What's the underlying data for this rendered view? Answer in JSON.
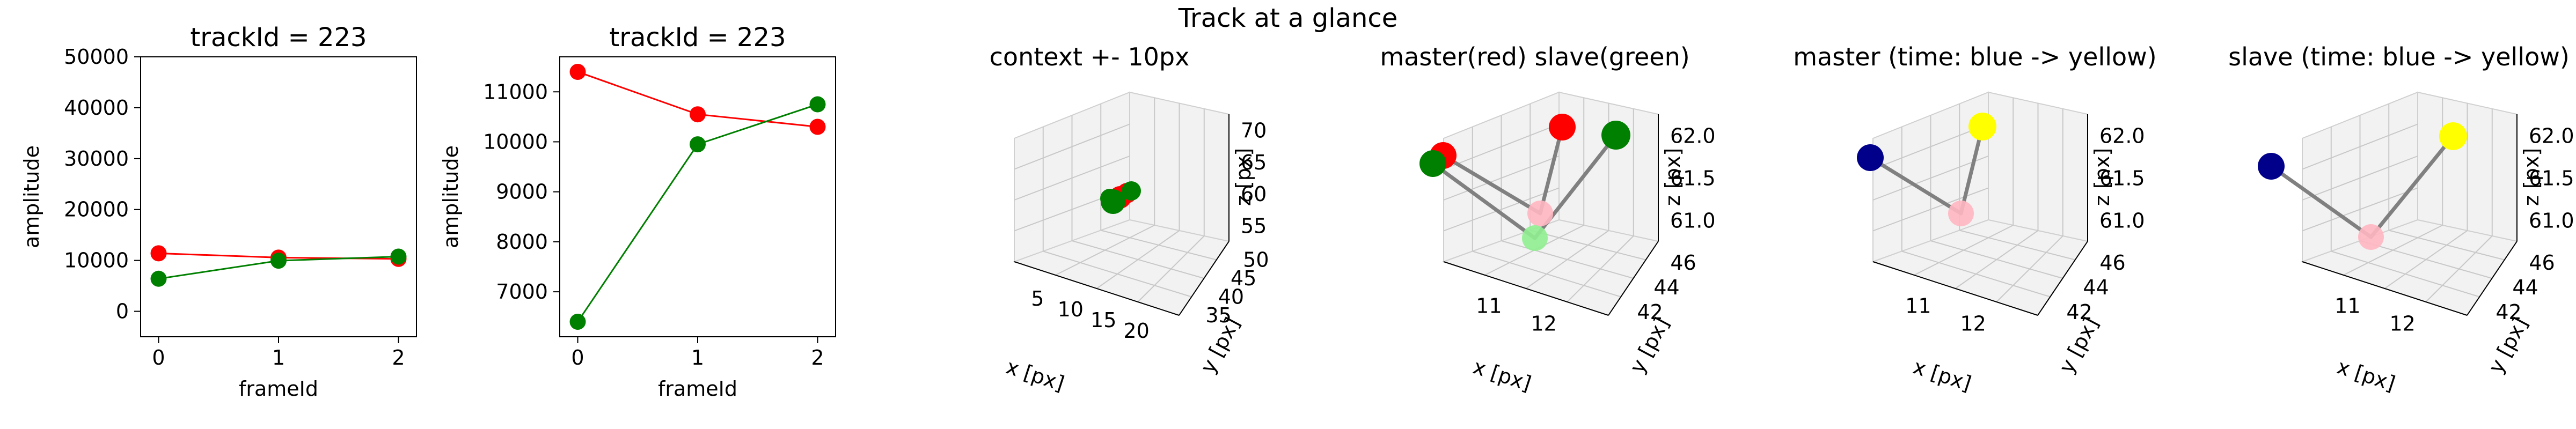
{
  "figure": {
    "suptitle": "Track at a glance"
  },
  "colors": {
    "red": "#ff0000",
    "green": "#008000",
    "navy": "#00008b",
    "yellow": "#ffff00",
    "pink": "#ffb6c1",
    "lightgreen": "#90ee90",
    "gray": "#808080",
    "paneFill": "#f2f2f2",
    "paneEdge": "#d0d0d0",
    "grid": "#c8c8c8"
  },
  "chart_data": [
    {
      "type": "line",
      "title": "trackId = 223",
      "xlabel": "frameId",
      "ylabel": "amplitude",
      "x": [
        0,
        1,
        2
      ],
      "xlim": [
        -0.15,
        2.15
      ],
      "ylim": [
        -5000,
        50000
      ],
      "xticks": [
        "0",
        "1",
        "2"
      ],
      "yticks": [
        "0",
        "10000",
        "20000",
        "30000",
        "40000",
        "50000"
      ],
      "series": [
        {
          "color": "#ff0000",
          "values": [
            11400,
            10550,
            10300
          ]
        },
        {
          "color": "#008000",
          "values": [
            6400,
            9950,
            10750
          ]
        }
      ],
      "grid": false,
      "legend": "none"
    },
    {
      "type": "line",
      "title": "trackId = 223",
      "xlabel": "frameId",
      "ylabel": "amplitude",
      "x": [
        0,
        1,
        2
      ],
      "xlim": [
        -0.15,
        2.15
      ],
      "ylim": [
        6100,
        11700
      ],
      "xticks": [
        "0",
        "1",
        "2"
      ],
      "yticks": [
        "7000",
        "8000",
        "9000",
        "10000",
        "11000"
      ],
      "series": [
        {
          "color": "#ff0000",
          "values": [
            11400,
            10550,
            10300
          ]
        },
        {
          "color": "#008000",
          "values": [
            6400,
            9950,
            10750
          ]
        }
      ],
      "grid": false,
      "legend": "none"
    },
    {
      "type": "scatter",
      "title": "context +- 10px",
      "projection": "3d",
      "xlabel": "x [px]",
      "ylabel": "y [px]",
      "zlabel": "z [px]",
      "xticks": [
        "5",
        "10",
        "15",
        "20"
      ],
      "yticks": [
        "35",
        "40",
        "45",
        "50"
      ],
      "zticks": [
        "55",
        "60",
        "65",
        "70"
      ],
      "points": [
        {
          "x": 11.5,
          "y": 43.5,
          "z": 61.5,
          "color": "#ff0000"
        },
        {
          "x": 12.0,
          "y": 44.5,
          "z": 61.8,
          "color": "#ff0000"
        },
        {
          "x": 10.8,
          "y": 44.0,
          "z": 61.6,
          "color": "#008000"
        },
        {
          "x": 12.8,
          "y": 45.5,
          "z": 62.1,
          "color": "#008000"
        },
        {
          "x": 11.8,
          "y": 42.8,
          "z": 60.6,
          "color": "#008000"
        }
      ]
    },
    {
      "type": "scatter",
      "title": "master(red) slave(green)",
      "projection": "3d",
      "xlabel": "x [px]",
      "ylabel": "y [px]",
      "zlabel": "z [px]",
      "xticks": [
        "11",
        "12"
      ],
      "yticks": [
        "42",
        "44",
        "46"
      ],
      "zticks": [
        "61.0",
        "61.5",
        "62.0"
      ],
      "points": [
        {
          "x": 11.6,
          "y": 43.5,
          "z": 61.5,
          "color": "#ff0000"
        },
        {
          "x": 12.0,
          "y": 44.0,
          "z": 61.0,
          "color": "#ffb6c1"
        },
        {
          "x": 12.1,
          "y": 44.8,
          "z": 62.0,
          "color": "#ff0000"
        },
        {
          "x": 11.5,
          "y": 43.3,
          "z": 61.4,
          "color": "#008000"
        },
        {
          "x": 12.0,
          "y": 43.5,
          "z": 60.8,
          "color": "#90ee90"
        },
        {
          "x": 12.6,
          "y": 45.5,
          "z": 62.0,
          "color": "#008000"
        }
      ]
    },
    {
      "type": "scatter",
      "title": "master (time: blue -> yellow)",
      "projection": "3d",
      "xlabel": "x [px]",
      "ylabel": "y [px]",
      "zlabel": "z [px]",
      "xticks": [
        "11",
        "12"
      ],
      "yticks": [
        "42",
        "44",
        "46"
      ],
      "zticks": [
        "61.0",
        "61.5",
        "62.0"
      ],
      "points": [
        {
          "x": 11.3,
          "y": 43.2,
          "z": 61.6,
          "color": "#00008b"
        },
        {
          "x": 12.0,
          "y": 44.0,
          "z": 61.0,
          "color": "#ffb6c1"
        },
        {
          "x": 12.1,
          "y": 45.0,
          "z": 62.0,
          "color": "#ffff00"
        }
      ]
    },
    {
      "type": "scatter",
      "title": "slave (time: blue -> yellow)",
      "projection": "3d",
      "xlabel": "x [px]",
      "ylabel": "y [px]",
      "zlabel": "z [px]",
      "xticks": [
        "11",
        "12"
      ],
      "yticks": [
        "42",
        "44",
        "46"
      ],
      "zticks": [
        "61.0",
        "61.5",
        "62.0"
      ],
      "points": [
        {
          "x": 11.1,
          "y": 43.0,
          "z": 61.4,
          "color": "#00008b"
        },
        {
          "x": 12.0,
          "y": 43.8,
          "z": 60.8,
          "color": "#ffb6c1"
        },
        {
          "x": 12.8,
          "y": 45.6,
          "z": 62.0,
          "color": "#ffff00"
        }
      ]
    }
  ]
}
